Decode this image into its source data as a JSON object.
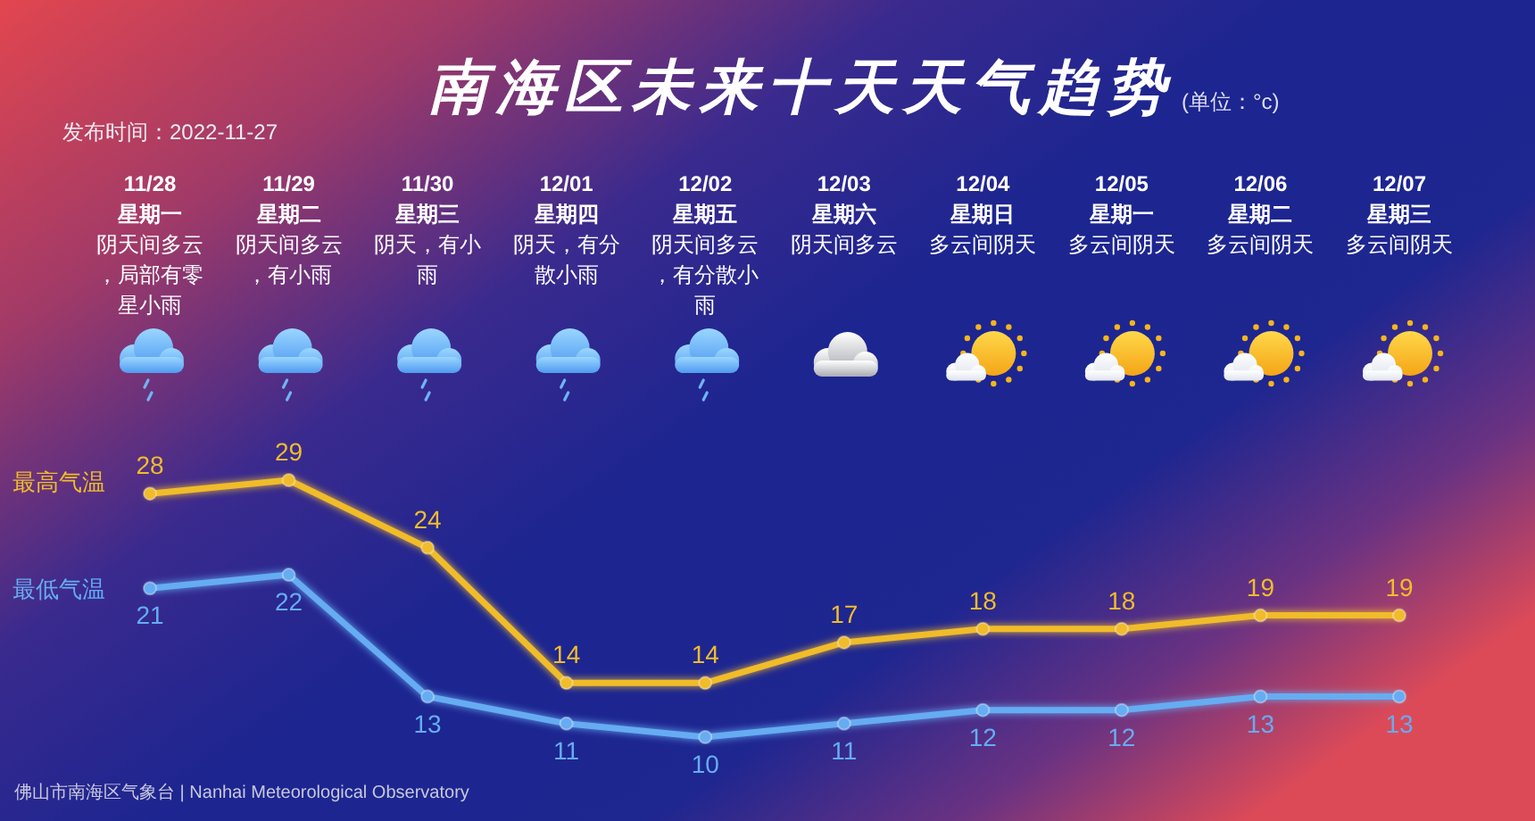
{
  "chart_data": {
    "type": "line",
    "title": "南海区未来十天天气趋势",
    "subtitle": "(单位：°c)",
    "annotations": [
      "发布时间：2022-11-27",
      "佛山市南海区气象台 | Nanhai Meteorological Observatory"
    ],
    "categories": [
      "11/28星期一阴天间多云，局部有零星小雨",
      "11/29星期二阴天间多云，有小雨",
      "11/30星期三阴天，有小雨",
      "12/01星期四阴天，有分散小雨",
      "12/02星期五阴天间多云，有分散小雨",
      "12/03星期六阴天间多云",
      "12/04星期日多云间阴天",
      "12/05星期一多云间阴天",
      "12/06星期二多云间阴天",
      "12/07星期三多云间阴天"
    ],
    "series": [
      {
        "name": "最高气温",
        "color": "#f0bc2c",
        "values": [
          28,
          29,
          24,
          14,
          14,
          17,
          18,
          18,
          19,
          19
        ]
      },
      {
        "name": "最低气温",
        "color": "#66acf2",
        "values": [
          21,
          22,
          13,
          11,
          10,
          11,
          12,
          12,
          13,
          13
        ]
      }
    ],
    "data_labels": true,
    "marker": "circle",
    "line_style": "solid"
  }
}
